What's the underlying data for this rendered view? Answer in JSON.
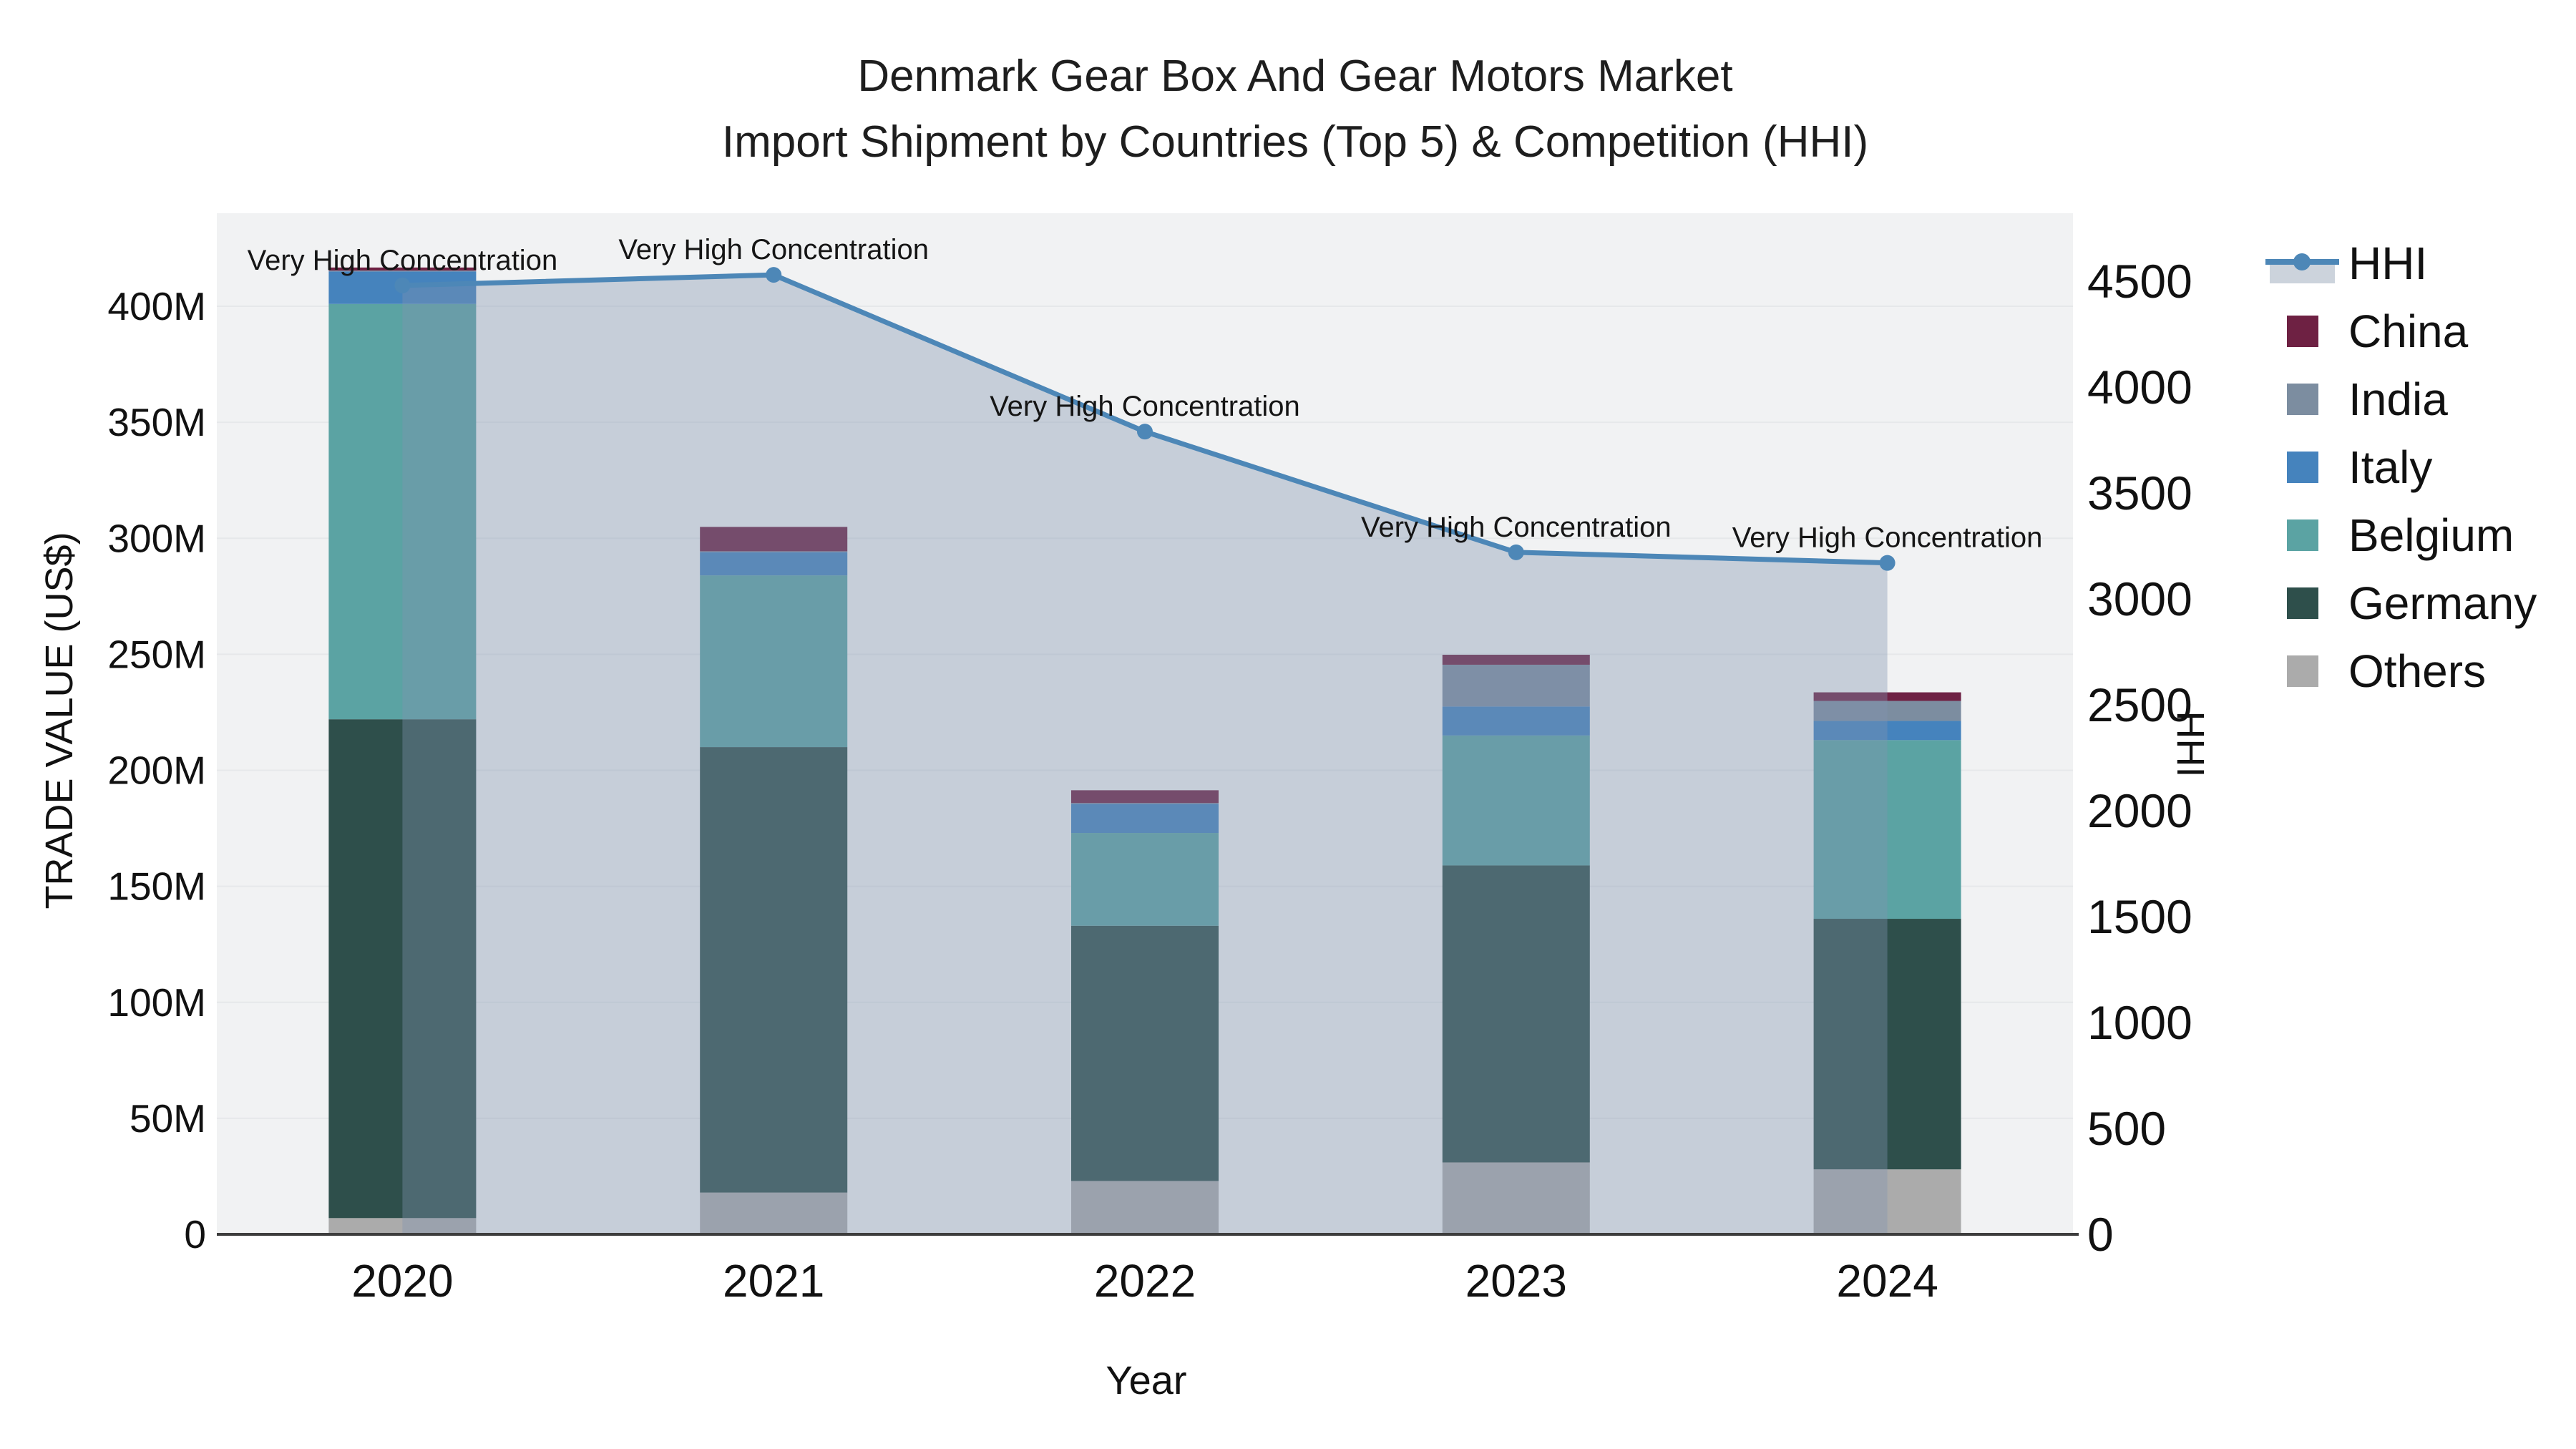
{
  "title": {
    "line1": "Denmark Gear Box And Gear Motors Market",
    "line2": "Import Shipment by Countries (Top 5) & Competition (HHI)"
  },
  "legend": {
    "order": [
      "HHI",
      "China",
      "India",
      "Italy",
      "Belgium",
      "Germany",
      "Others"
    ]
  },
  "annotation_text": "Very High Concentration",
  "chart_data": {
    "type": "bar",
    "subtype": "stacked-bars-with-line-overlay",
    "categories": [
      "2020",
      "2021",
      "2022",
      "2023",
      "2024"
    ],
    "value_unit": "US$ millions",
    "series": [
      {
        "name": "Others",
        "color": "#ababab",
        "values": [
          7,
          18,
          23,
          31,
          28
        ]
      },
      {
        "name": "Germany",
        "color": "#2e4f4b",
        "values": [
          215,
          192,
          110,
          128,
          108
        ]
      },
      {
        "name": "Belgium",
        "color": "#5ba3a3",
        "values": [
          179,
          74,
          40,
          56,
          77
        ]
      },
      {
        "name": "Italy",
        "color": "#4583bd",
        "values": [
          14,
          10,
          12.5,
          12.5,
          8.3
        ]
      },
      {
        "name": "India",
        "color": "#7c8da0",
        "values": [
          0.4,
          0.4,
          0.4,
          18,
          8.6
        ]
      },
      {
        "name": "China",
        "color": "#6e2143",
        "values": [
          1.3,
          10.5,
          5.5,
          4.3,
          3.7
        ]
      }
    ],
    "line": {
      "name": "HHI",
      "color": "#4d87b7",
      "area_fill": "rgba(130,148,175,0.38)",
      "axis": "right",
      "values": [
        4480,
        4530,
        3790,
        3220,
        3170
      ]
    },
    "annotations": [
      {
        "x": "2020",
        "text": "Very High Concentration"
      },
      {
        "x": "2021",
        "text": "Very High Concentration"
      },
      {
        "x": "2022",
        "text": "Very High Concentration"
      },
      {
        "x": "2023",
        "text": "Very High Concentration"
      },
      {
        "x": "2024",
        "text": "Very High Concentration"
      }
    ],
    "x_axis": {
      "title": "Year"
    },
    "y_left": {
      "title": "TRADE VALUE (US$)",
      "tick_values_musd": [
        0,
        50,
        100,
        150,
        200,
        250,
        300,
        350,
        400
      ],
      "tick_labels": [
        "0",
        "50M",
        "100M",
        "150M",
        "200M",
        "250M",
        "300M",
        "350M",
        "400M"
      ],
      "range_musd": [
        0,
        440
      ]
    },
    "y_right": {
      "title": "HHI",
      "tick_values": [
        0,
        500,
        1000,
        1500,
        2000,
        2500,
        3000,
        3500,
        4000,
        4500
      ],
      "tick_labels": [
        "0",
        "500",
        "1000",
        "1500",
        "2000",
        "2500",
        "3000",
        "3500",
        "4000",
        "4500"
      ],
      "range": [
        0,
        4820
      ]
    },
    "grid": true,
    "legend_position": "right-outside-top"
  },
  "colors": {
    "plot_bg": "#f1f2f3",
    "gridline": "#e6e8ea",
    "axis_line": "#3d3d3d",
    "tick_text": "#111111",
    "title_text": "#1e1e1e",
    "annotation_text": "#151515",
    "legend_band": "#ccd3dc"
  }
}
